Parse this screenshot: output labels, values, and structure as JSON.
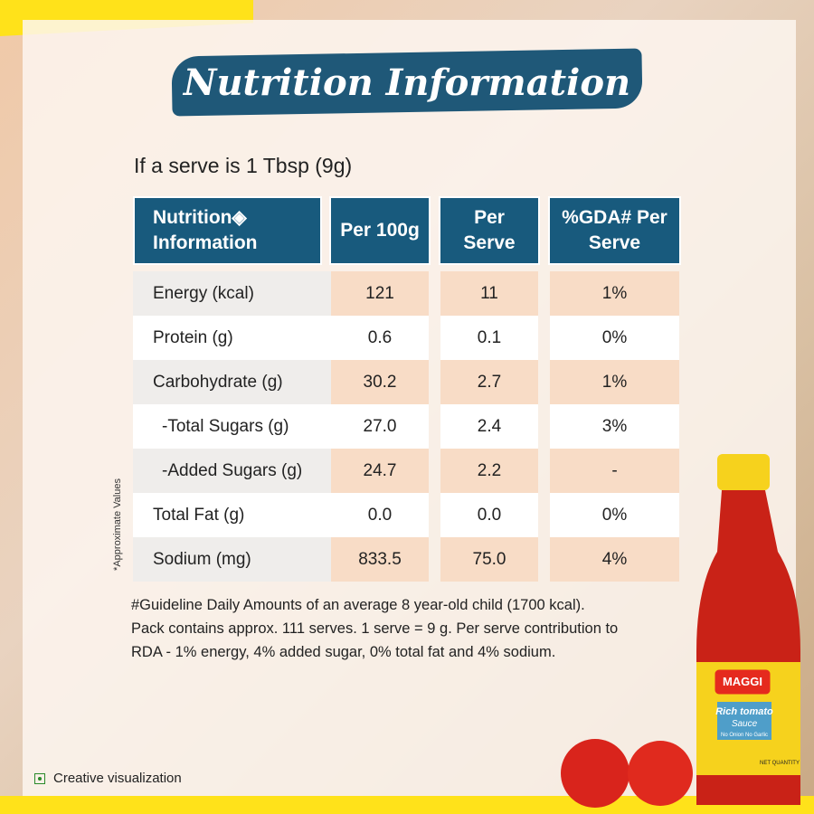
{
  "header": {
    "title": "Nutrition Information",
    "serve_note": "If a serve is 1 Tbsp (9g)"
  },
  "table": {
    "headers": [
      "Nutrition◈ Information",
      "Per 100g",
      "Per Serve",
      "%GDA# Per Serve"
    ],
    "rows": [
      [
        "Energy (kcal)",
        "121",
        "11",
        "1%"
      ],
      [
        "Protein (g)",
        "0.6",
        "0.1",
        "0%"
      ],
      [
        "Carbohydrate (g)",
        "30.2",
        "2.7",
        "1%"
      ],
      [
        "-Total Sugars (g)",
        "27.0",
        "2.4",
        "3%"
      ],
      [
        "-Added Sugars (g)",
        "24.7",
        "2.2",
        "-"
      ],
      [
        "Total Fat (g)",
        "0.0",
        "0.0",
        "0%"
      ],
      [
        "Sodium (mg)",
        "833.5",
        "75.0",
        "4%"
      ]
    ]
  },
  "side_note": "*Approximate Values",
  "footnote": [
    "#Guideline Daily Amounts of an average 8 year-old child (1700 kcal).",
    "Pack contains  approx. 111 serves. 1 serve = 9 g. Per serve contribution to",
    "RDA - 1% energy, 4% added sugar, 0% total fat and 4% sodium."
  ],
  "badge": "Creative visualization",
  "bottle": {
    "brand": "MAGGI",
    "name": "Rich tomato",
    "variant": "Sauce",
    "claim": "No Onion No Garlic",
    "net": "NET QUANTITY"
  }
}
